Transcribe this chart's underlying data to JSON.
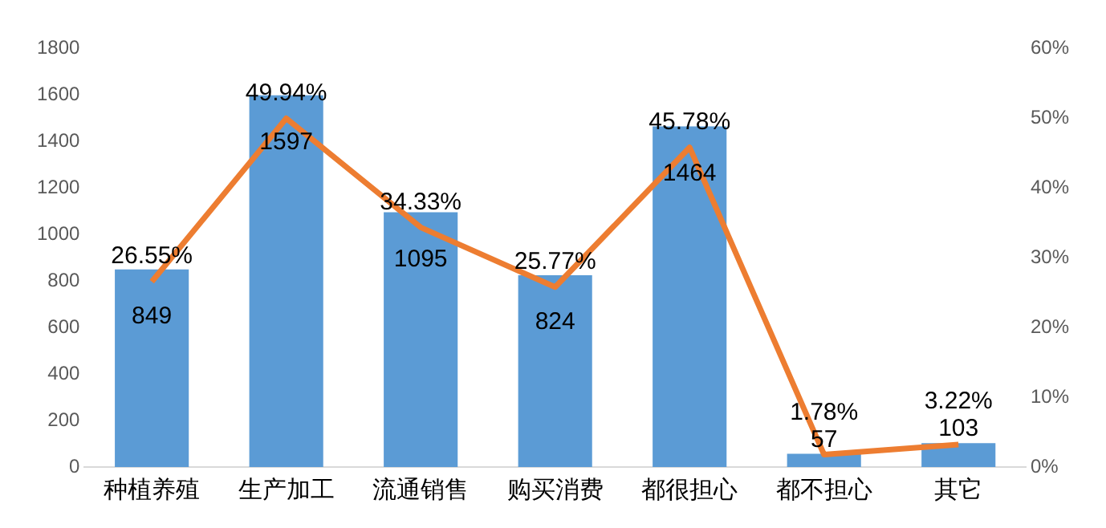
{
  "chart_data": {
    "type": "bar",
    "categories": [
      "种植养殖",
      "生产加工",
      "流通销售",
      "购买消费",
      "都很担心",
      "都不担心",
      "其它"
    ],
    "series": [
      {
        "color": "#5b9bd5",
        "values": [
          849,
          1597,
          1095,
          824,
          1464,
          57,
          103
        ],
        "value_labels": [
          "849",
          "1597",
          "1095",
          "824",
          "1464",
          "57",
          "103"
        ]
      },
      {
        "type": "line",
        "axis": "y2",
        "color": "#ed7d31",
        "marker": "none",
        "values": [
          26.55,
          49.94,
          34.33,
          25.77,
          45.78,
          1.78,
          3.22
        ],
        "value_labels": [
          "26.55%",
          "49.94%",
          "34.33%",
          "25.77%",
          "45.78%",
          "1.78%",
          "3.22%"
        ]
      }
    ],
    "ylim": [
      0,
      1800
    ],
    "yticks": [
      0,
      200,
      400,
      600,
      800,
      1000,
      1200,
      1400,
      1600,
      1800
    ],
    "y2lim": [
      0,
      60
    ],
    "y2ticks": [
      {
        "value": 0,
        "label": "0%"
      },
      {
        "value": 10,
        "label": "10%"
      },
      {
        "value": 20,
        "label": "20%"
      },
      {
        "value": 30,
        "label": "30%"
      },
      {
        "value": 40,
        "label": "40%"
      },
      {
        "value": 50,
        "label": "50%"
      },
      {
        "value": 60,
        "label": "60%"
      }
    ],
    "grid": false,
    "legend": false
  }
}
